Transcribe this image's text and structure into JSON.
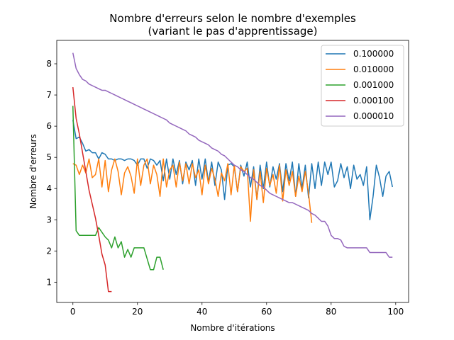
{
  "chart_data": {
    "type": "line",
    "title": "Nombre d'erreurs selon le nombre d'exemples",
    "subtitle": "(variant le pas d'apprentissage)",
    "xlabel": "Nombre d'itérations",
    "ylabel": "Nombre d'erreurs",
    "xlim": [
      -5,
      104
    ],
    "ylim": [
      0.35,
      8.75
    ],
    "xticks": [
      0,
      20,
      40,
      60,
      80,
      100
    ],
    "yticks": [
      1,
      2,
      3,
      4,
      5,
      6,
      7,
      8
    ],
    "legend_position": "top-right",
    "grid": false,
    "series": [
      {
        "name": "0.100000",
        "color": "#1f77b4",
        "y": [
          6.2,
          5.6,
          5.65,
          5.45,
          5.2,
          5.25,
          5.15,
          5.15,
          4.95,
          5.15,
          5.1,
          4.95,
          4.95,
          4.9,
          4.95,
          4.95,
          4.9,
          4.95,
          4.95,
          4.9,
          4.75,
          4.95,
          4.95,
          4.65,
          4.95,
          4.9,
          4.75,
          4.9,
          4.25,
          4.95,
          4.3,
          4.95,
          4.45,
          4.9,
          4.15,
          4.85,
          4.6,
          4.9,
          4.1,
          4.95,
          4.3,
          4.95,
          4.2,
          4.85,
          4.1,
          4.85,
          4.6,
          3.65,
          4.75,
          4.8,
          4.7,
          3.9,
          4.75,
          4.4,
          4.85,
          4.05,
          4.7,
          3.65,
          4.75,
          4.0,
          4.85,
          4.05,
          4.7,
          4.3,
          4.8,
          3.9,
          4.8,
          4.25,
          4.85,
          3.75,
          4.8,
          4.0,
          4.75,
          3.7,
          4.8,
          4.0,
          4.85,
          4.1,
          4.85,
          4.45,
          4.85,
          4.05,
          4.25,
          4.8,
          4.35,
          4.7,
          4.0,
          4.75,
          4.3,
          4.45,
          4.1,
          4.7,
          3.0,
          3.75,
          4.75,
          4.35,
          3.75,
          4.4,
          4.55,
          4.05
        ]
      },
      {
        "name": "0.010000",
        "color": "#ff7f0e",
        "y": [
          4.8,
          4.75,
          4.45,
          4.75,
          4.5,
          4.95,
          4.35,
          4.45,
          4.95,
          4.05,
          4.9,
          3.9,
          4.6,
          4.95,
          4.55,
          3.8,
          4.5,
          4.7,
          4.4,
          3.85,
          4.95,
          4.1,
          4.75,
          4.95,
          4.15,
          4.75,
          4.45,
          3.75,
          4.95,
          4.05,
          4.6,
          4.75,
          4.05,
          4.85,
          4.25,
          4.8,
          4.15,
          4.8,
          4.35,
          4.6,
          3.8,
          4.75,
          4.15,
          4.65,
          4.3,
          3.75,
          4.5,
          4.25,
          4.8,
          3.8,
          4.75,
          3.9,
          4.7,
          4.55,
          4.65,
          2.95,
          4.6,
          3.65,
          4.55,
          3.55,
          4.65,
          4.1,
          4.45,
          3.85,
          4.75,
          3.6,
          4.6,
          4.1,
          4.55,
          3.75,
          4.4,
          3.9,
          4.55,
          3.85,
          2.9
        ]
      },
      {
        "name": "0.001000",
        "color": "#2ca02c",
        "y": [
          6.65,
          2.65,
          2.5,
          2.5,
          2.5,
          2.5,
          2.5,
          2.5,
          2.75,
          2.6,
          2.45,
          2.35,
          2.1,
          2.45,
          2.1,
          2.3,
          1.8,
          2.05,
          1.8,
          2.1,
          2.1,
          2.1,
          2.1,
          1.75,
          1.4,
          1.4,
          1.8,
          1.8,
          1.4
        ]
      },
      {
        "name": "0.000100",
        "color": "#d62728",
        "y": [
          7.25,
          6.25,
          5.75,
          5.15,
          4.55,
          3.95,
          3.5,
          3.05,
          2.5,
          1.9,
          1.55,
          0.7,
          0.7
        ]
      },
      {
        "name": "0.000010",
        "color": "#9467bd",
        "y": [
          8.35,
          7.85,
          7.65,
          7.5,
          7.45,
          7.35,
          7.3,
          7.25,
          7.2,
          7.15,
          7.15,
          7.1,
          7.05,
          7.0,
          6.95,
          6.9,
          6.85,
          6.8,
          6.75,
          6.7,
          6.65,
          6.6,
          6.55,
          6.5,
          6.45,
          6.4,
          6.35,
          6.3,
          6.25,
          6.2,
          6.1,
          6.05,
          6.0,
          5.95,
          5.9,
          5.85,
          5.75,
          5.7,
          5.65,
          5.55,
          5.5,
          5.45,
          5.4,
          5.3,
          5.25,
          5.2,
          5.1,
          5.05,
          4.95,
          4.85,
          4.75,
          4.7,
          4.6,
          4.55,
          4.45,
          4.35,
          4.3,
          4.2,
          4.1,
          4.05,
          3.95,
          3.85,
          3.8,
          3.75,
          3.7,
          3.65,
          3.6,
          3.55,
          3.55,
          3.5,
          3.45,
          3.4,
          3.35,
          3.3,
          3.2,
          3.15,
          3.05,
          2.95,
          2.95,
          2.8,
          2.5,
          2.4,
          2.4,
          2.35,
          2.15,
          2.1,
          2.1,
          2.1,
          2.1,
          2.1,
          2.1,
          2.1,
          1.95,
          1.95,
          1.95,
          1.95,
          1.95,
          1.95,
          1.8,
          1.8
        ]
      }
    ]
  }
}
